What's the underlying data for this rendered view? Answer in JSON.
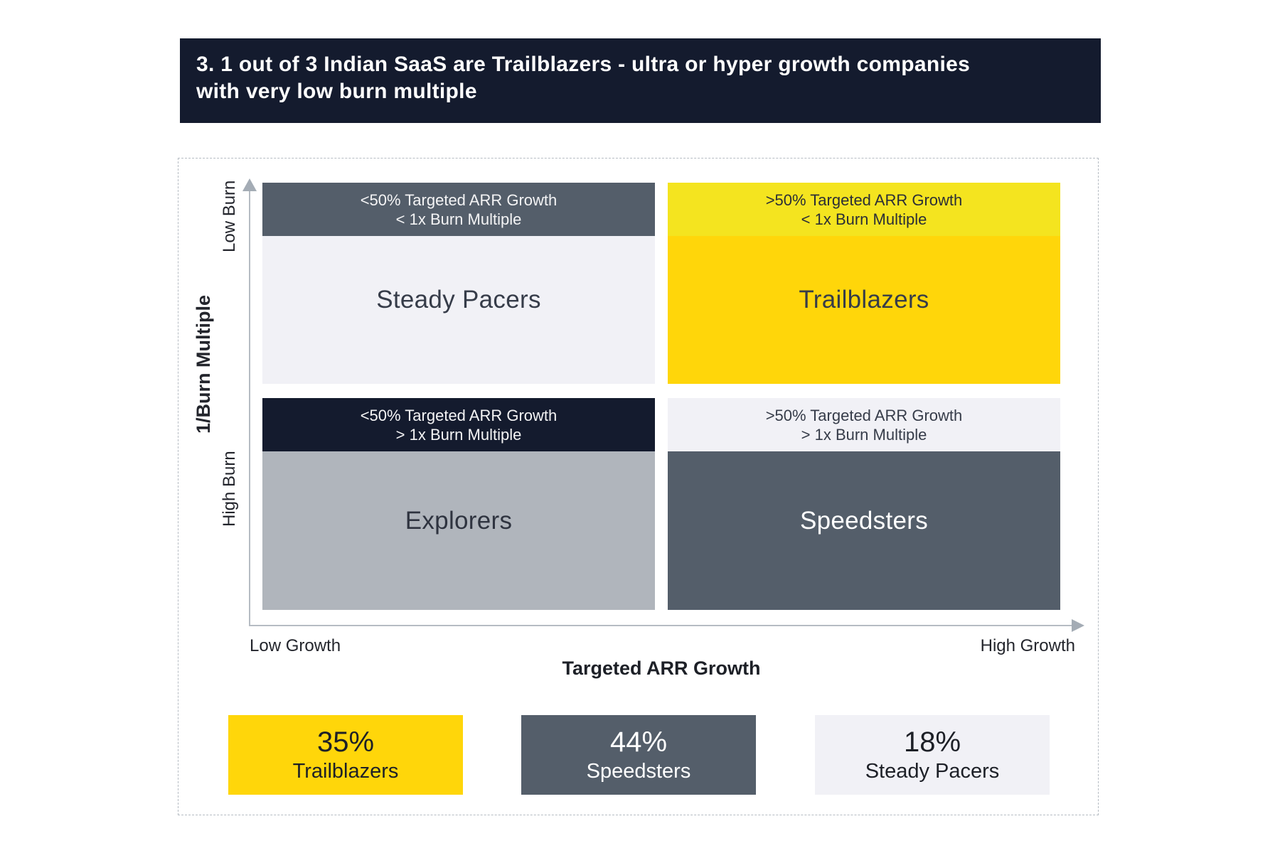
{
  "colors": {
    "navy": "#141b2e",
    "slate": "#545e6a",
    "light_gray": "#f1f1f6",
    "medium_gray": "#b0b5bc",
    "gold": "#ffd60a",
    "bright_yellow": "#f4e41f",
    "axis_gray": "#b6bcc3",
    "dark_text": "#1d2027",
    "white": "#ffffff"
  },
  "title": {
    "line1": "3. 1 out of 3 Indian SaaS are Trailblazers - ultra or hyper growth companies",
    "line2": "with very low burn multiple"
  },
  "chart_data": {
    "type": "quadrant-matrix",
    "title": "3. 1 out of 3 Indian SaaS are Trailblazers - ultra or hyper growth companies with very low burn multiple",
    "x_axis": {
      "title": "Targeted ARR Growth",
      "min_label": "Low Growth",
      "max_label": "High Growth"
    },
    "y_axis": {
      "title": "1/Burn Multiple",
      "min_label": "High Burn",
      "max_label": "Low Burn"
    },
    "grid": false,
    "legend_position": "none",
    "quadrants": [
      {
        "position": "top-left",
        "name": "Steady Pacers",
        "condition1": "<50% Targeted ARR Growth",
        "condition2": "< 1x Burn Multiple",
        "header_color": "#545e6a",
        "header_text_color": "#f4f4f5",
        "body_color": "#f1f1f6",
        "name_color": "#363c49"
      },
      {
        "position": "top-right",
        "name": "Trailblazers",
        "condition1": ">50% Targeted ARR Growth",
        "condition2": "< 1x Burn Multiple",
        "header_color": "#f4e41f",
        "header_text_color": "#2b2e36",
        "body_color": "#ffd60a",
        "name_color": "#363c49"
      },
      {
        "position": "bottom-left",
        "name": "Explorers",
        "condition1": "<50% Targeted ARR Growth",
        "condition2": "> 1x Burn Multiple",
        "header_color": "#141b2e",
        "header_text_color": "#f4f4f5",
        "body_color": "#b0b5bc",
        "name_color": "#2f3440"
      },
      {
        "position": "bottom-right",
        "name": "Speedsters",
        "condition1": ">50% Targeted ARR Growth",
        "condition2": "> 1x Burn Multiple",
        "header_color": "#f1f1f6",
        "header_text_color": "#363c49",
        "body_color": "#545e6a",
        "name_color": "#ffffff"
      }
    ],
    "stats": [
      {
        "value": "35%",
        "label": "Trailblazers",
        "bg_color": "#ffd60a",
        "text_color": "#1d2027"
      },
      {
        "value": "44%",
        "label": "Speedsters",
        "bg_color": "#545e6a",
        "text_color": "#ffffff"
      },
      {
        "value": "18%",
        "label": "Steady Pacers",
        "bg_color": "#f1f1f6",
        "text_color": "#1d2027"
      }
    ]
  }
}
